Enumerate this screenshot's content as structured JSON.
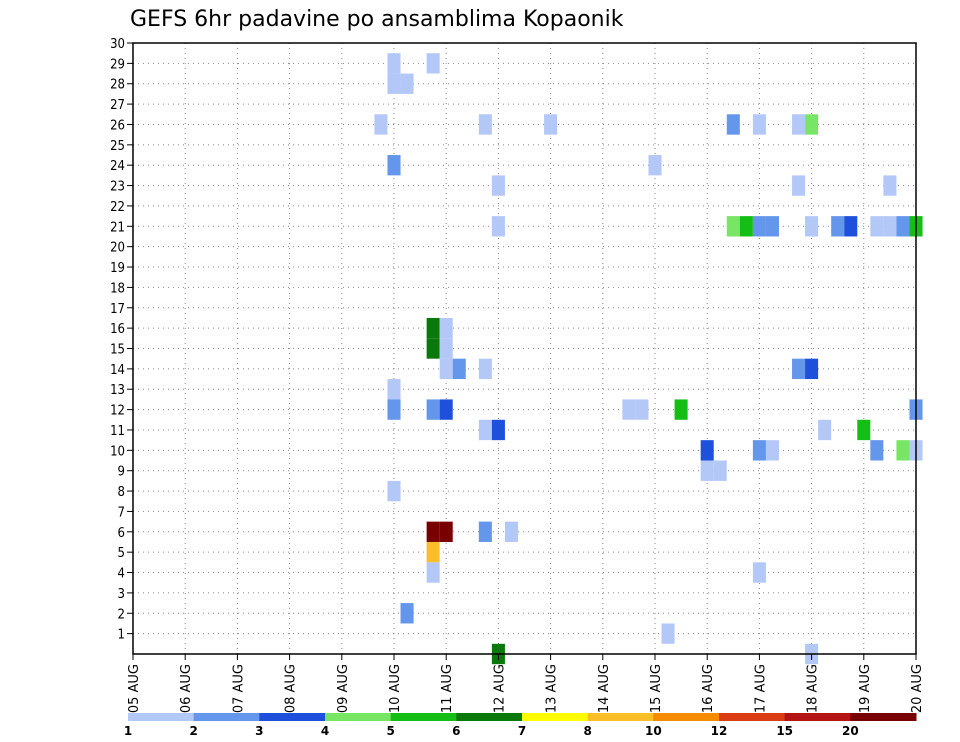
{
  "chart_data": {
    "type": "heatmap",
    "title": "GEFS 6hr padavine po ansamblima Kopaonik",
    "xlabel": "",
    "ylabel": "",
    "y_ticks": [
      "1",
      "2",
      "3",
      "4",
      "5",
      "6",
      "7",
      "8",
      "9",
      "10",
      "11",
      "12",
      "13",
      "14",
      "15",
      "16",
      "17",
      "18",
      "19",
      "20",
      "21",
      "22",
      "23",
      "24",
      "25",
      "26",
      "27",
      "28",
      "29",
      "30"
    ],
    "ylim": [
      0,
      30
    ],
    "x_ticks": [
      "05 AUG",
      "06 AUG",
      "07 AUG",
      "08 AUG",
      "09 AUG",
      "10 AUG",
      "11 AUG",
      "12 AUG",
      "13 AUG",
      "14 AUG",
      "15 AUG",
      "16 AUG",
      "17 AUG",
      "18 AUG",
      "19 AUG",
      "20 AUG"
    ],
    "xlim_steps": [
      0,
      60
    ],
    "steps_per_day": 4,
    "grid": true,
    "colorbar": {
      "labels": [
        "1",
        "2",
        "3",
        "4",
        "5",
        "6",
        "7",
        "8",
        "10",
        "12",
        "15",
        "20"
      ],
      "colors": [
        "#b4c8f8",
        "#6496ec",
        "#1e50dc",
        "#78e664",
        "#14be14",
        "#0a780a",
        "#ffff00",
        "#fabe28",
        "#f58c00",
        "#dc3c14",
        "#b41414",
        "#780000"
      ]
    },
    "cells": [
      {
        "t": 20,
        "m": 29,
        "c": 1
      },
      {
        "t": 20,
        "m": 28,
        "c": 1
      },
      {
        "t": 21,
        "m": 28,
        "c": 1
      },
      {
        "t": 23,
        "m": 29,
        "c": 1
      },
      {
        "t": 19,
        "m": 26,
        "c": 1
      },
      {
        "t": 27,
        "m": 26,
        "c": 1
      },
      {
        "t": 32,
        "m": 26,
        "c": 1
      },
      {
        "t": 46,
        "m": 26,
        "c": 2
      },
      {
        "t": 48,
        "m": 26,
        "c": 1
      },
      {
        "t": 51,
        "m": 26,
        "c": 1
      },
      {
        "t": 52,
        "m": 26,
        "c": 4
      },
      {
        "t": 20,
        "m": 24,
        "c": 2
      },
      {
        "t": 40,
        "m": 24,
        "c": 1
      },
      {
        "t": 28,
        "m": 23,
        "c": 1
      },
      {
        "t": 51,
        "m": 23,
        "c": 1
      },
      {
        "t": 58,
        "m": 23,
        "c": 1
      },
      {
        "t": 28,
        "m": 21,
        "c": 1
      },
      {
        "t": 46,
        "m": 21,
        "c": 4
      },
      {
        "t": 47,
        "m": 21,
        "c": 5
      },
      {
        "t": 48,
        "m": 21,
        "c": 2
      },
      {
        "t": 49,
        "m": 21,
        "c": 2
      },
      {
        "t": 52,
        "m": 21,
        "c": 1
      },
      {
        "t": 54,
        "m": 21,
        "c": 2
      },
      {
        "t": 55,
        "m": 21,
        "c": 3
      },
      {
        "t": 57,
        "m": 21,
        "c": 1
      },
      {
        "t": 58,
        "m": 21,
        "c": 1
      },
      {
        "t": 59,
        "m": 21,
        "c": 2
      },
      {
        "t": 60,
        "m": 21,
        "c": 5
      },
      {
        "t": 23,
        "m": 16,
        "c": 6
      },
      {
        "t": 24,
        "m": 16,
        "c": 1
      },
      {
        "t": 23,
        "m": 15,
        "c": 6
      },
      {
        "t": 24,
        "m": 15,
        "c": 1
      },
      {
        "t": 24,
        "m": 14,
        "c": 1
      },
      {
        "t": 25,
        "m": 14,
        "c": 2
      },
      {
        "t": 27,
        "m": 14,
        "c": 1
      },
      {
        "t": 51,
        "m": 14,
        "c": 2
      },
      {
        "t": 52,
        "m": 14,
        "c": 3
      },
      {
        "t": 20,
        "m": 13,
        "c": 1
      },
      {
        "t": 20,
        "m": 12,
        "c": 2
      },
      {
        "t": 23,
        "m": 12,
        "c": 2
      },
      {
        "t": 24,
        "m": 12,
        "c": 3
      },
      {
        "t": 38,
        "m": 12,
        "c": 1
      },
      {
        "t": 39,
        "m": 12,
        "c": 1
      },
      {
        "t": 42,
        "m": 12,
        "c": 5
      },
      {
        "t": 60,
        "m": 12,
        "c": 2
      },
      {
        "t": 27,
        "m": 11,
        "c": 1
      },
      {
        "t": 28,
        "m": 11,
        "c": 3
      },
      {
        "t": 53,
        "m": 11,
        "c": 1
      },
      {
        "t": 56,
        "m": 11,
        "c": 5
      },
      {
        "t": 44,
        "m": 10,
        "c": 3
      },
      {
        "t": 48,
        "m": 10,
        "c": 2
      },
      {
        "t": 49,
        "m": 10,
        "c": 1
      },
      {
        "t": 57,
        "m": 10,
        "c": 2
      },
      {
        "t": 59,
        "m": 10,
        "c": 4
      },
      {
        "t": 60,
        "m": 10,
        "c": 1
      },
      {
        "t": 44,
        "m": 9,
        "c": 1
      },
      {
        "t": 45,
        "m": 9,
        "c": 1
      },
      {
        "t": 20,
        "m": 8,
        "c": 1
      },
      {
        "t": 23,
        "m": 6,
        "c": 12
      },
      {
        "t": 24,
        "m": 6,
        "c": 12
      },
      {
        "t": 27,
        "m": 6,
        "c": 2
      },
      {
        "t": 29,
        "m": 6,
        "c": 1
      },
      {
        "t": 23,
        "m": 5,
        "c": 8
      },
      {
        "t": 23,
        "m": 4,
        "c": 1
      },
      {
        "t": 48,
        "m": 4,
        "c": 1
      },
      {
        "t": 21,
        "m": 2,
        "c": 2
      },
      {
        "t": 41,
        "m": 1,
        "c": 1
      },
      {
        "t": 28,
        "m": 0,
        "c": 6
      },
      {
        "t": 52,
        "m": 0,
        "c": 1
      }
    ]
  }
}
